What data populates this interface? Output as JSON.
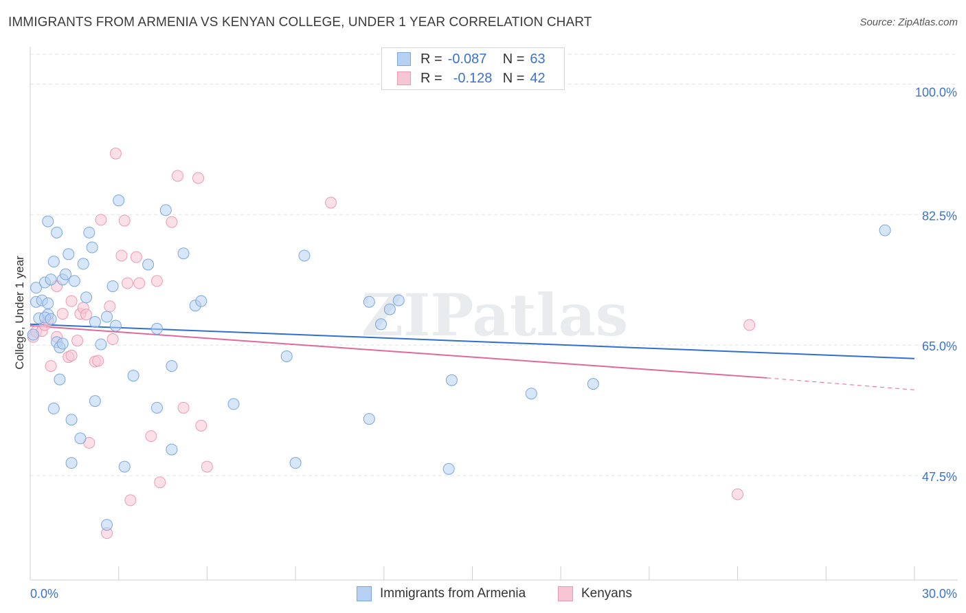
{
  "title": "IMMIGRANTS FROM ARMENIA VS KENYAN COLLEGE, UNDER 1 YEAR CORRELATION CHART",
  "source": "Source: ZipAtlas.com",
  "watermark": "ZIPatlas",
  "legend": {
    "armenia": {
      "r_label": "R =",
      "r_value": "-0.087",
      "n_label": "N =",
      "n_value": "63"
    },
    "kenyan": {
      "r_label": "R =",
      "r_value": "-0.128",
      "n_label": "N =",
      "n_value": "42"
    }
  },
  "colors": {
    "armenia_fill": "#b7d1f2",
    "armenia_stroke": "#7aa6e0",
    "armenia_line": "#2f6fce",
    "kenyan_fill": "#f7c6d5",
    "kenyan_stroke": "#ea9ab4",
    "kenyan_line": "#e0689a",
    "tick_label": "#3c73c9",
    "grid": "#e2e2e2"
  },
  "chart_data": {
    "type": "scatter",
    "title": "IMMIGRANTS FROM ARMENIA VS KENYAN COLLEGE, UNDER 1 YEAR CORRELATION CHART",
    "xlabel": "",
    "ylabel": "College, Under 1 year",
    "xlim": [
      0,
      30
    ],
    "ylim": [
      33.5,
      104
    ],
    "x_tick_labels": [
      "0.0%",
      "30.0%"
    ],
    "y_ticks": [
      47.5,
      65.0,
      82.5,
      100.0
    ],
    "y_tick_labels": [
      "47.5%",
      "65.0%",
      "82.5%",
      "100.0%"
    ],
    "grid": true,
    "legend_position": "top-center",
    "series": [
      {
        "name": "Immigrants from Armenia",
        "trend": {
          "x": [
            0,
            30
          ],
          "y": [
            67.8,
            63.2
          ]
        },
        "points": [
          {
            "x": 0.1,
            "y": 66.4
          },
          {
            "x": 0.2,
            "y": 72.7
          },
          {
            "x": 0.2,
            "y": 70.8
          },
          {
            "x": 0.3,
            "y": 68.6
          },
          {
            "x": 0.4,
            "y": 71.0
          },
          {
            "x": 0.5,
            "y": 73.4
          },
          {
            "x": 0.6,
            "y": 69.1
          },
          {
            "x": 0.5,
            "y": 68.7
          },
          {
            "x": 0.6,
            "y": 81.6
          },
          {
            "x": 0.6,
            "y": 70.6
          },
          {
            "x": 0.7,
            "y": 68.5
          },
          {
            "x": 0.7,
            "y": 73.8
          },
          {
            "x": 0.8,
            "y": 76.2
          },
          {
            "x": 0.8,
            "y": 56.5
          },
          {
            "x": 0.9,
            "y": 80.1
          },
          {
            "x": 0.9,
            "y": 65.4
          },
          {
            "x": 1.0,
            "y": 64.7
          },
          {
            "x": 1.0,
            "y": 60.4
          },
          {
            "x": 1.1,
            "y": 65.2
          },
          {
            "x": 1.1,
            "y": 73.8
          },
          {
            "x": 1.2,
            "y": 74.5
          },
          {
            "x": 1.3,
            "y": 77.2
          },
          {
            "x": 1.4,
            "y": 55.0
          },
          {
            "x": 1.4,
            "y": 49.2
          },
          {
            "x": 1.5,
            "y": 73.6
          },
          {
            "x": 1.7,
            "y": 52.5
          },
          {
            "x": 1.8,
            "y": 75.9
          },
          {
            "x": 1.9,
            "y": 71.4
          },
          {
            "x": 2.0,
            "y": 80.1
          },
          {
            "x": 2.1,
            "y": 78.1
          },
          {
            "x": 2.2,
            "y": 68.1
          },
          {
            "x": 2.2,
            "y": 57.5
          },
          {
            "x": 2.4,
            "y": 65.1
          },
          {
            "x": 2.6,
            "y": 68.8
          },
          {
            "x": 2.6,
            "y": 40.9
          },
          {
            "x": 2.8,
            "y": 72.9
          },
          {
            "x": 2.9,
            "y": 67.6
          },
          {
            "x": 3.0,
            "y": 84.4
          },
          {
            "x": 3.2,
            "y": 48.7
          },
          {
            "x": 3.5,
            "y": 60.9
          },
          {
            "x": 4.0,
            "y": 75.8
          },
          {
            "x": 4.3,
            "y": 67.2
          },
          {
            "x": 4.3,
            "y": 56.6
          },
          {
            "x": 4.6,
            "y": 83.1
          },
          {
            "x": 4.8,
            "y": 62.2
          },
          {
            "x": 4.8,
            "y": 51.0
          },
          {
            "x": 5.2,
            "y": 77.3
          },
          {
            "x": 5.6,
            "y": 70.3
          },
          {
            "x": 5.8,
            "y": 70.9
          },
          {
            "x": 6.9,
            "y": 57.1
          },
          {
            "x": 8.7,
            "y": 63.5
          },
          {
            "x": 9.0,
            "y": 49.2
          },
          {
            "x": 9.3,
            "y": 77.0
          },
          {
            "x": 11.5,
            "y": 70.8
          },
          {
            "x": 11.5,
            "y": 55.1
          },
          {
            "x": 11.9,
            "y": 67.8
          },
          {
            "x": 12.2,
            "y": 69.8
          },
          {
            "x": 12.5,
            "y": 71.0
          },
          {
            "x": 14.2,
            "y": 48.4
          },
          {
            "x": 14.3,
            "y": 60.3
          },
          {
            "x": 17.0,
            "y": 58.5
          },
          {
            "x": 19.1,
            "y": 59.8
          },
          {
            "x": 29.0,
            "y": 80.4
          }
        ]
      },
      {
        "name": "Kenyans",
        "trend": {
          "x": [
            0,
            25.0
          ],
          "y": [
            67.6,
            60.6
          ]
        },
        "trend_extension": {
          "x": [
            25.0,
            30
          ],
          "y": [
            60.6,
            59.0
          ]
        },
        "points": [
          {
            "x": 0.1,
            "y": 66.1
          },
          {
            "x": 0.2,
            "y": 66.8
          },
          {
            "x": 0.4,
            "y": 66.9
          },
          {
            "x": 0.5,
            "y": 67.7
          },
          {
            "x": 0.6,
            "y": 68.3
          },
          {
            "x": 0.7,
            "y": 62.2
          },
          {
            "x": 0.9,
            "y": 66.1
          },
          {
            "x": 0.9,
            "y": 72.9
          },
          {
            "x": 1.1,
            "y": 69.2
          },
          {
            "x": 1.3,
            "y": 63.4
          },
          {
            "x": 1.4,
            "y": 63.6
          },
          {
            "x": 1.4,
            "y": 70.9
          },
          {
            "x": 1.6,
            "y": 65.6
          },
          {
            "x": 1.7,
            "y": 69.2
          },
          {
            "x": 1.8,
            "y": 70.0
          },
          {
            "x": 1.9,
            "y": 69.1
          },
          {
            "x": 2.0,
            "y": 51.9
          },
          {
            "x": 2.2,
            "y": 62.8
          },
          {
            "x": 2.3,
            "y": 62.9
          },
          {
            "x": 2.4,
            "y": 81.8
          },
          {
            "x": 2.6,
            "y": 39.8
          },
          {
            "x": 2.7,
            "y": 70.2
          },
          {
            "x": 2.8,
            "y": 65.8
          },
          {
            "x": 2.9,
            "y": 90.7
          },
          {
            "x": 3.1,
            "y": 77.0
          },
          {
            "x": 3.2,
            "y": 81.7
          },
          {
            "x": 3.3,
            "y": 73.3
          },
          {
            "x": 3.4,
            "y": 44.2
          },
          {
            "x": 3.6,
            "y": 76.8
          },
          {
            "x": 3.7,
            "y": 73.3
          },
          {
            "x": 4.1,
            "y": 52.8
          },
          {
            "x": 4.3,
            "y": 73.6
          },
          {
            "x": 4.4,
            "y": 46.6
          },
          {
            "x": 4.8,
            "y": 81.5
          },
          {
            "x": 5.0,
            "y": 87.7
          },
          {
            "x": 5.2,
            "y": 56.6
          },
          {
            "x": 5.7,
            "y": 87.4
          },
          {
            "x": 5.8,
            "y": 54.2
          },
          {
            "x": 6.0,
            "y": 48.7
          },
          {
            "x": 10.2,
            "y": 84.1
          },
          {
            "x": 24.0,
            "y": 45.0
          },
          {
            "x": 24.4,
            "y": 67.7
          }
        ]
      }
    ]
  }
}
